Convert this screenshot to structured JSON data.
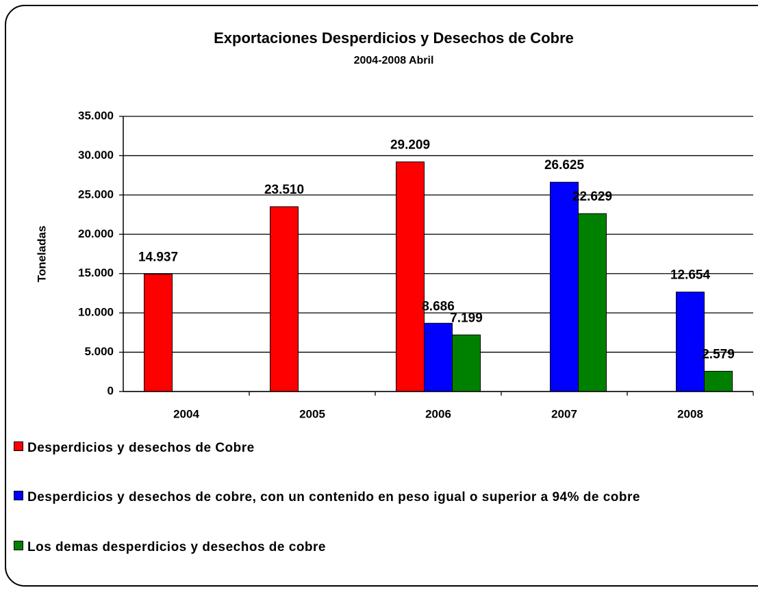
{
  "chart_data": {
    "type": "bar",
    "title": "Exportaciones  Desperdicios y Desechos de Cobre",
    "subtitle": "2004-2008 Abril",
    "y_label": "Toneladas",
    "categories": [
      "2004",
      "2005",
      "2006",
      "2007",
      "2008"
    ],
    "series": [
      {
        "name": "Desperdicios y desechos de Cobre",
        "color": "#ff0000",
        "values": [
          14937,
          23510,
          29209,
          null,
          null
        ],
        "value_labels": [
          "14.937",
          "23.510",
          "29.209",
          null,
          null
        ]
      },
      {
        "name": "Desperdicios y desechos de cobre, con un contenido en peso igual o superior a 94% de cobre",
        "color": "#0000ff",
        "values": [
          null,
          null,
          8686,
          26625,
          12654
        ],
        "value_labels": [
          null,
          null,
          "8.686",
          "26.625",
          "12.654"
        ]
      },
      {
        "name": "Los demas desperdicios y desechos de cobre",
        "color": "#008000",
        "values": [
          null,
          null,
          7199,
          22629,
          2579
        ],
        "value_labels": [
          null,
          null,
          "7.199",
          "22.629",
          "2.579"
        ]
      }
    ],
    "ylim": [
      0,
      35000
    ],
    "yticks": [
      0,
      {
        "value": 5000,
        "label": "5.000"
      },
      {
        "value": 10000,
        "label": "10.000"
      },
      {
        "value": 15000,
        "label": "15.000"
      },
      {
        "value": 20000,
        "label": "20.000"
      },
      {
        "value": 25000,
        "label": "25.000"
      },
      {
        "value": 30000,
        "label": "30.000"
      },
      {
        "value": 35000,
        "label": "35.000"
      }
    ],
    "grid": true
  }
}
